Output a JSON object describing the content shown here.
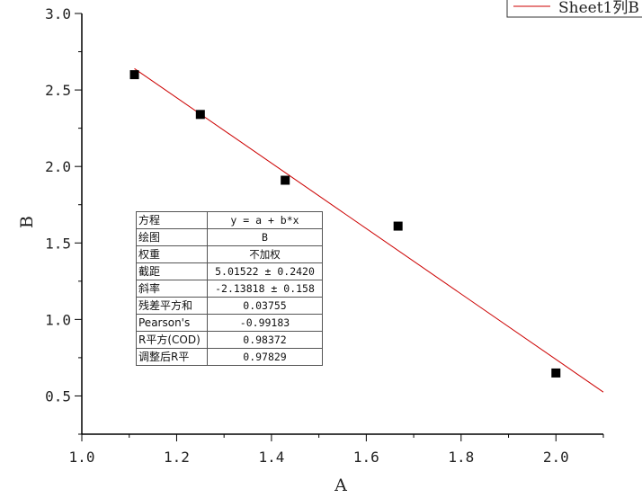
{
  "chart_data": {
    "type": "scatter",
    "xlabel": "A",
    "ylabel": "B",
    "xlim": [
      1.0,
      2.1
    ],
    "ylim": [
      0.25,
      3.0
    ],
    "x_ticks": [
      "1.0",
      "1.2",
      "1.4",
      "1.6",
      "1.8",
      "2.0"
    ],
    "y_ticks": [
      "0.5",
      "1.0",
      "1.5",
      "2.0",
      "2.5",
      "3.0"
    ],
    "series": [
      {
        "name": "",
        "marker": "square",
        "color": "#000000",
        "x": [
          1.111,
          1.25,
          1.429,
          1.667,
          2.0
        ],
        "y": [
          2.6,
          2.34,
          1.91,
          1.61,
          0.65
        ]
      }
    ],
    "fit": {
      "intercept": 5.01522,
      "slope": -2.13818,
      "x_range": [
        1.111,
        2.1
      ],
      "color": "#cc0000"
    },
    "legend": {
      "label": "Sheet1列B",
      "position": "top-right"
    },
    "fit_table": [
      {
        "key": "方程",
        "value": "y = a + b*x"
      },
      {
        "key": "绘图",
        "value": "B"
      },
      {
        "key": "权重",
        "value": "不加权"
      },
      {
        "key": "截距",
        "value": "5.01522 ± 0.2420"
      },
      {
        "key": "斜率",
        "value": "-2.13818 ± 0.158"
      },
      {
        "key": "残差平方和",
        "value": "0.03755"
      },
      {
        "key": "Pearson's",
        "value": "-0.99183"
      },
      {
        "key": "R平方(COD)",
        "value": "0.98372"
      },
      {
        "key": "调整后R平",
        "value": "0.97829"
      }
    ]
  }
}
